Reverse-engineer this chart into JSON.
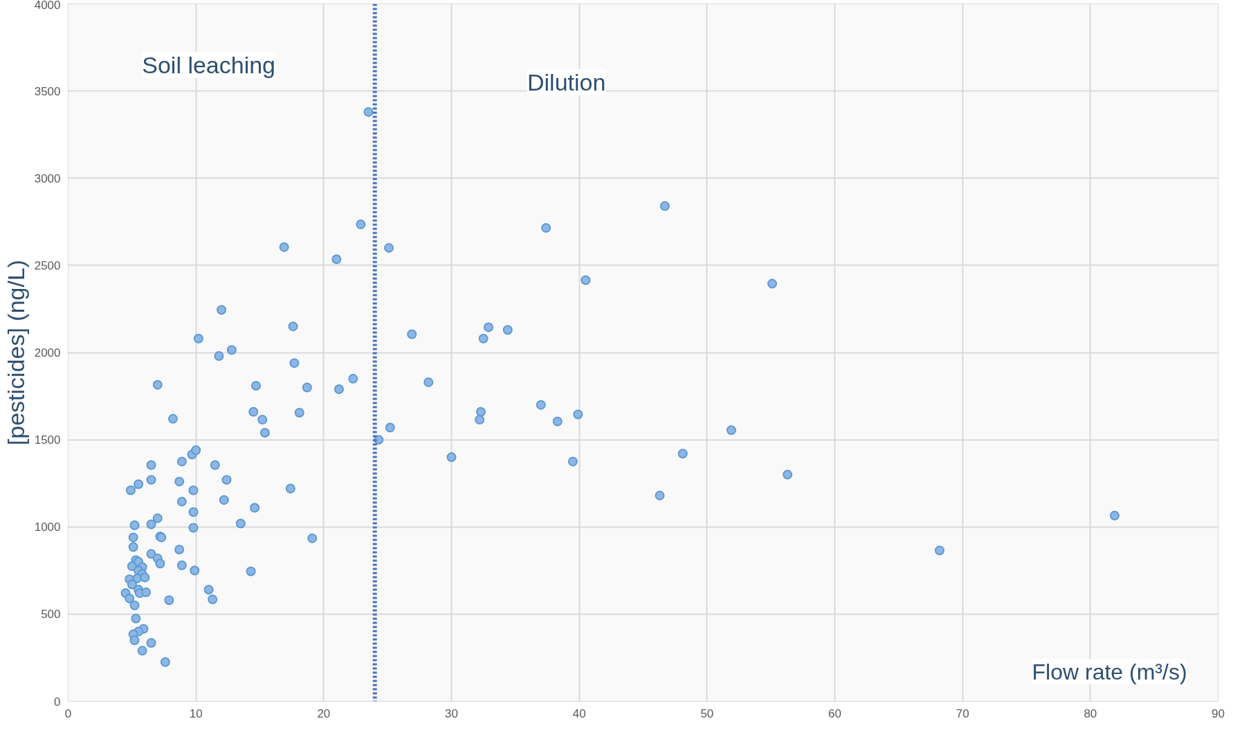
{
  "chart_data": {
    "type": "scatter",
    "xlabel": "Flow rate (m³/s)",
    "ylabel": "[pesticides] (ng/L)",
    "annotations": [
      "Soil leaching",
      "Dilution"
    ],
    "xlim": [
      0,
      90
    ],
    "xticks": [
      0,
      10,
      20,
      30,
      40,
      50,
      60,
      70,
      80,
      90
    ],
    "ylim": [
      0,
      4000
    ],
    "yticks": [
      0,
      500,
      1000,
      1500,
      2000,
      2500,
      3000,
      3500,
      4000
    ],
    "grid": true,
    "marker": "circle",
    "ref_lines": [
      {
        "axis": "x",
        "value": 24,
        "label": null,
        "color": "#4472c4",
        "line_style": "dotted"
      }
    ],
    "series": [
      {
        "color": "#8fb6e3",
        "x": [
          4.9,
          5.5,
          6.5,
          6.5,
          5.2,
          6.5,
          5.1,
          5.1,
          7.0,
          7.2,
          7.3,
          6.5,
          7.0,
          7.2,
          5.3,
          5.5,
          5.0,
          5.8,
          5.5,
          5.8,
          4.8,
          5.4,
          6.0,
          5.0,
          5.5,
          4.5,
          5.6,
          6.1,
          4.8,
          5.2,
          5.3,
          5.9,
          5.5,
          5.1,
          5.2,
          6.5,
          5.8,
          7.6,
          7.9,
          7.0,
          8.2,
          8.9,
          8.7,
          9.7,
          10.0,
          9.8,
          8.9,
          9.8,
          9.8,
          8.7,
          8.9,
          9.9,
          11.0,
          11.3,
          10.2,
          11.8,
          12.0,
          12.8,
          11.5,
          12.4,
          12.2,
          13.5,
          14.3,
          14.6,
          14.7,
          14.5,
          15.2,
          15.4,
          17.4,
          16.9,
          17.6,
          17.7,
          18.1,
          18.7,
          19.1,
          21.0,
          21.2,
          22.3,
          22.9,
          23.5,
          25.1,
          25.2,
          24.3,
          26.9,
          28.2,
          30.0,
          32.2,
          32.3,
          32.5,
          32.9,
          34.4,
          37.0,
          37.4,
          38.3,
          39.5,
          39.9,
          40.5,
          46.3,
          46.7,
          48.1,
          51.9,
          55.1,
          56.3,
          68.2,
          81.9
        ],
        "values": [
          1210,
          1245,
          1355,
          1270,
          1010,
          1015,
          940,
          885,
          1050,
          945,
          940,
          845,
          820,
          790,
          810,
          800,
          775,
          770,
          750,
          730,
          700,
          705,
          710,
          670,
          640,
          620,
          620,
          625,
          590,
          550,
          475,
          415,
          400,
          385,
          350,
          335,
          290,
          225,
          580,
          1815,
          1620,
          1375,
          1260,
          1415,
          1440,
          1210,
          1145,
          1085,
          995,
          870,
          780,
          750,
          640,
          585,
          2080,
          1980,
          2245,
          2015,
          1355,
          1270,
          1155,
          1020,
          745,
          1110,
          1810,
          1660,
          1615,
          1540,
          1220,
          2605,
          2150,
          1940,
          1655,
          1800,
          935,
          2535,
          1790,
          1850,
          2735,
          3380,
          2600,
          1570,
          1500,
          2105,
          1830,
          1400,
          1615,
          1660,
          2080,
          2145,
          2130,
          1700,
          2715,
          1605,
          1375,
          1645,
          2415,
          1180,
          2840,
          1420,
          1555,
          2395,
          1300,
          865,
          1065
        ]
      }
    ]
  }
}
